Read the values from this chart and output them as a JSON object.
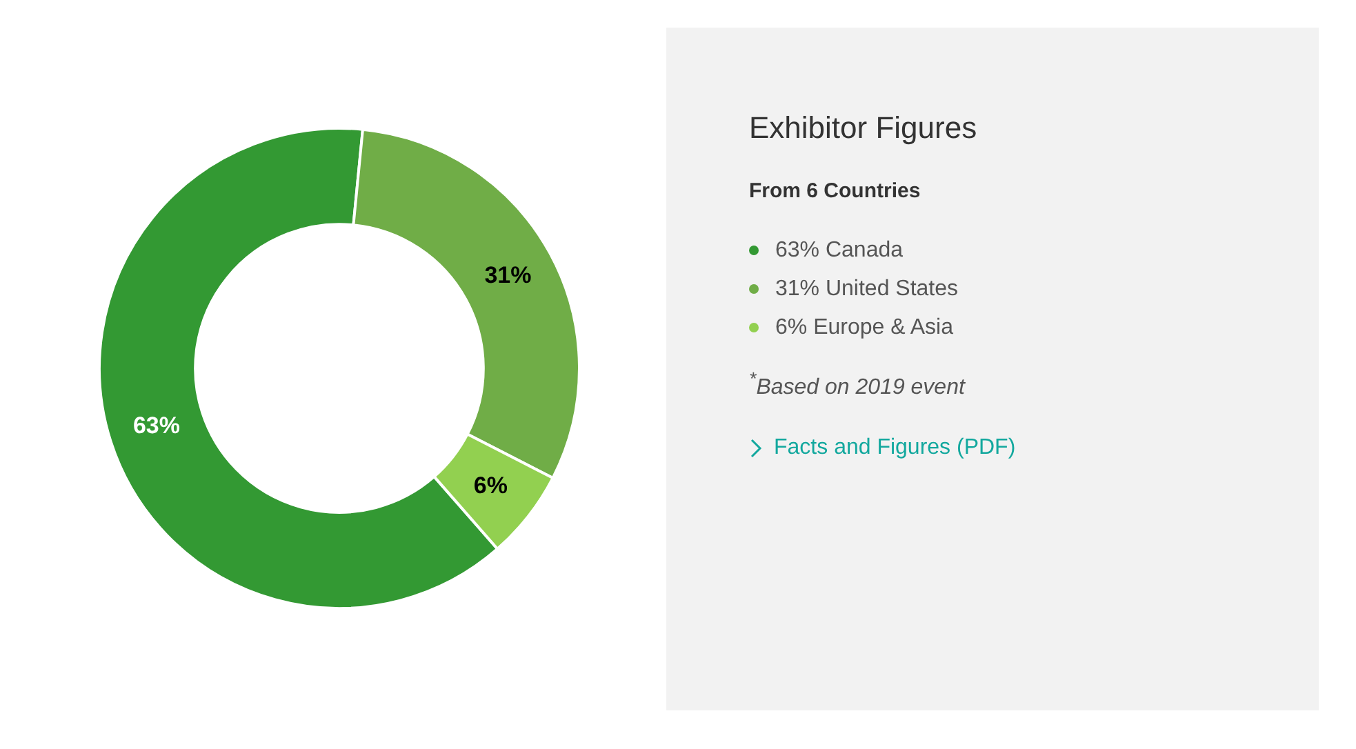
{
  "chart_data": {
    "type": "donut",
    "title": "Exhibitor Figures",
    "subtitle": "From 6 Countries",
    "categories": [
      "Canada",
      "United States",
      "Europe & Asia"
    ],
    "values": [
      63,
      31,
      6
    ],
    "colors": [
      "#339933",
      "#70ad47",
      "#92d050"
    ],
    "value_labels": [
      "63%",
      "31%",
      "6%"
    ],
    "legend": "right",
    "annotations": [
      "$^{*}$Based on 2019 event",
      "Facts and Figures (PDF)"
    ]
  }
}
